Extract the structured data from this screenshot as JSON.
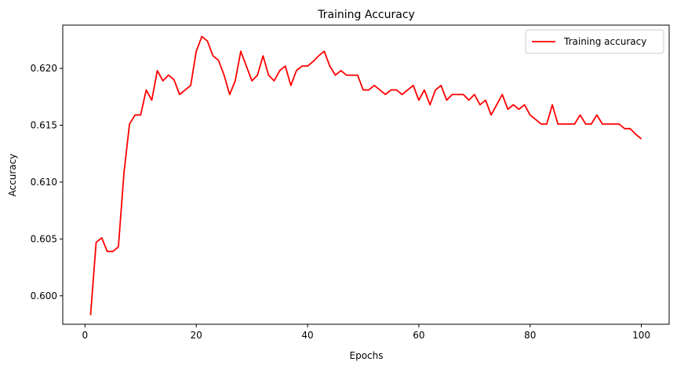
{
  "chart_data": {
    "type": "line",
    "title": "Training Accuracy",
    "xlabel": "Epochs",
    "ylabel": "Accuracy",
    "xlim": [
      -4,
      105
    ],
    "ylim": [
      0.5975,
      0.6238
    ],
    "xticks": [
      0,
      20,
      40,
      60,
      80,
      100
    ],
    "xtick_labels": [
      "0",
      "20",
      "40",
      "60",
      "80",
      "100"
    ],
    "yticks": [
      0.6,
      0.605,
      0.61,
      0.615,
      0.62
    ],
    "ytick_labels": [
      "0.600",
      "0.605",
      "0.610",
      "0.615",
      "0.620"
    ],
    "grid": false,
    "legend_position": "top-right",
    "series": [
      {
        "name": "Training accuracy",
        "color": "#ff0000",
        "x": [
          1,
          2,
          3,
          4,
          5,
          6,
          7,
          8,
          9,
          10,
          11,
          12,
          13,
          14,
          15,
          16,
          17,
          18,
          19,
          20,
          21,
          22,
          23,
          24,
          25,
          26,
          27,
          28,
          29,
          30,
          31,
          32,
          33,
          34,
          35,
          36,
          37,
          38,
          39,
          40,
          41,
          42,
          43,
          44,
          45,
          46,
          47,
          48,
          49,
          50,
          51,
          52,
          53,
          54,
          55,
          56,
          57,
          58,
          59,
          60,
          61,
          62,
          63,
          64,
          65,
          66,
          67,
          68,
          69,
          70,
          71,
          72,
          73,
          74,
          75,
          76,
          77,
          78,
          79,
          80,
          81,
          82,
          83,
          84,
          85,
          86,
          87,
          88,
          89,
          90,
          91,
          92,
          93,
          94,
          95,
          96,
          97,
          98,
          99,
          100
        ],
        "y": [
          0.5983,
          0.6047,
          0.6051,
          0.6039,
          0.6039,
          0.6043,
          0.6108,
          0.6151,
          0.6159,
          0.6159,
          0.6181,
          0.6172,
          0.6198,
          0.6189,
          0.6194,
          0.619,
          0.6177,
          0.6181,
          0.6185,
          0.6215,
          0.6228,
          0.6224,
          0.6211,
          0.6207,
          0.6194,
          0.6177,
          0.6189,
          0.6215,
          0.6202,
          0.6189,
          0.6194,
          0.6211,
          0.6194,
          0.6189,
          0.6198,
          0.6202,
          0.6185,
          0.6198,
          0.6202,
          0.6202,
          0.6206,
          0.6211,
          0.6215,
          0.6202,
          0.6194,
          0.6198,
          0.6194,
          0.6194,
          0.6194,
          0.6181,
          0.6181,
          0.6185,
          0.6181,
          0.6177,
          0.6181,
          0.6181,
          0.6177,
          0.6181,
          0.6185,
          0.6172,
          0.6181,
          0.6168,
          0.6181,
          0.6185,
          0.6172,
          0.6177,
          0.6177,
          0.6177,
          0.6172,
          0.6177,
          0.6168,
          0.6172,
          0.6159,
          0.6168,
          0.6177,
          0.6164,
          0.6168,
          0.6164,
          0.6168,
          0.6159,
          0.6155,
          0.6151,
          0.6151,
          0.6168,
          0.6151,
          0.6151,
          0.6151,
          0.6151,
          0.6159,
          0.6151,
          0.6151,
          0.6159,
          0.6151,
          0.6151,
          0.6151,
          0.6151,
          0.6147,
          0.6147,
          0.6142,
          0.6138
        ]
      }
    ]
  }
}
